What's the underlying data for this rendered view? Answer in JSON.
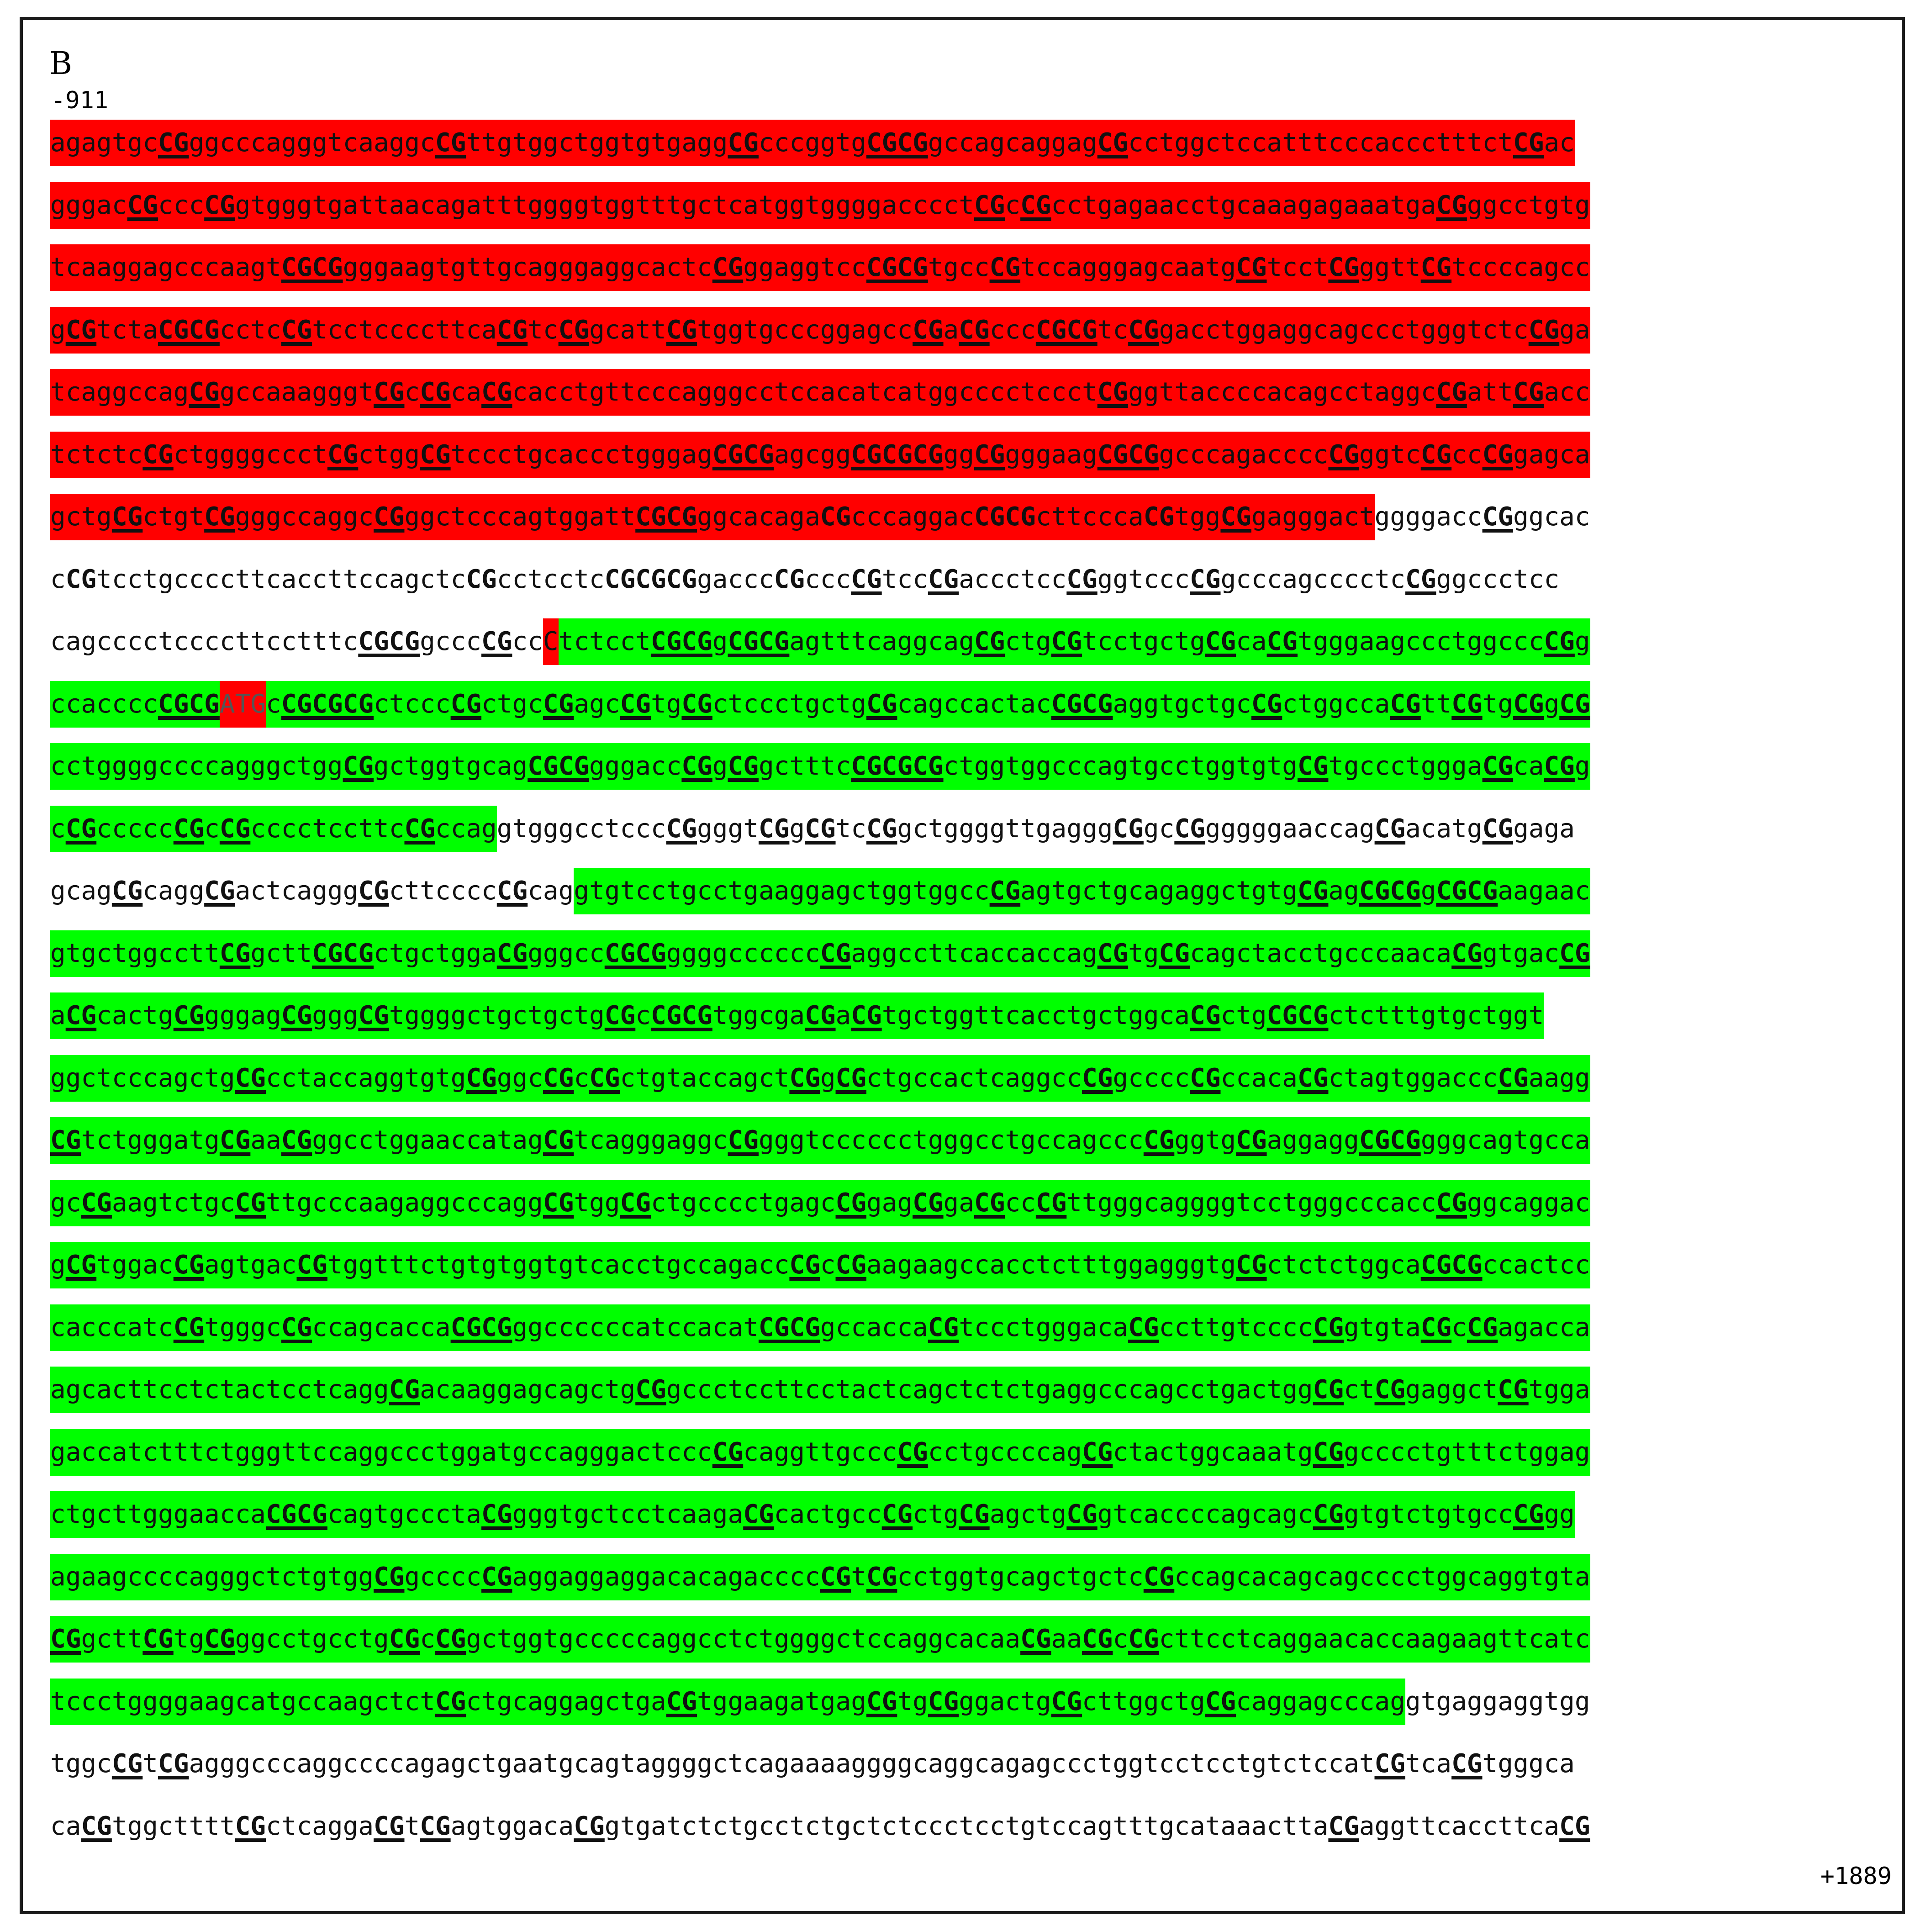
{
  "figure": {
    "panel_label": "B",
    "start_position": "-911",
    "end_position": "+1889"
  },
  "colors": {
    "red_region": "#ff0000",
    "green_region": "#00ff00",
    "text": "#111111"
  },
  "sequence": {
    "markup_legend": "Each line is an array of segments: [text, background ('r' red, 'g' green, '' none)]. Inside text, [X] = bold underlined CpG, {X} = bold (not underlined) CpG, <X> = start codon.",
    "lines": [
      [
        [
          "agagtgc[CG]ggcccagggtcaaggc[CG]ttgtggctggtgtgagg[CG]cccggtg[CGCG]gccagcaggag[CG]cctggctccatttcccaccctttct[CG]ac",
          "r"
        ]
      ],
      [
        [
          "gggac[CG]ccc[CG]gtgggtgattaacagatttggggtggtttgctcatggtggggacccct[CG]c[CG]cctgagaacctgcaaagagaaatga[CG]ggcctgtg",
          "r"
        ]
      ],
      [
        [
          "tcaaggagcccaagt[CGCG]gggaagtgttgcagggaggcactc[CG]ggaggtcc[CGCG]tgcc[CG]tccagggagcaatg[CG]tcct[CG]ggtt[CG]tccccagcc",
          "r"
        ]
      ],
      [
        [
          "g[CG]tcta[CGCG]cctc[CG]tcctccccttca[CG]tc[CG]gcatt[CG]tggtgcccggagcc[CG]a[CG]ccc[CGCG]tc[CG]gacctggaggcagccctgggtctc[CG]ga",
          "r"
        ]
      ],
      [
        [
          "tcaggccag[CG]gccaaagggt[CG]c[CG]ca[CG]cacctgttcccagggcctccacatcatggcccctccct[CG]ggttaccccacagcctaggc[CG]att[CG]acc",
          "r"
        ]
      ],
      [
        [
          "tctctc[CG]ctggggccct[CG]ctgg[CG]tccctgcaccctgggag[CGCG]agcgg[CGCGCG]gg[CG]gggaag[CGCG]gcccagacccc[CG]ggtc[CG]cc[CG]gagca",
          "r"
        ]
      ],
      [
        [
          "gctg[CG]ctgt[CG]gggccaggc[CG]ggctcccagtggatt[CGCG]ggcacaga{CG}cccaggac{CGCG}cttccca{CG}tgg[CG]gagggact",
          "r"
        ],
        [
          "ggggacc[CG]ggcac",
          ""
        ]
      ],
      [
        [
          "c{CG}tcctgccccttcaccttccagctc{CG}cctcctc{CGCGCG}gaccc{CG}ccc[CG]tcc[CG]accctcc[CG]ggtccc[CG]gcccagcccctc[CG]ggccctcc",
          ""
        ]
      ],
      [
        [
          "cagcccctccccttcctttc[CGCG]gccc[CG]cc",
          ""
        ],
        [
          "C",
          "r"
        ],
        [
          "tctcct[CGCG]g[CGCG]agtttcaggcag[CG]ctg[CG]tcctgctg[CG]ca[CG]tgggaagccctggccc[CG]g",
          "g"
        ]
      ],
      [
        [
          "ccacccc[CGCG]",
          "g"
        ],
        [
          "<ATG>",
          "r"
        ],
        [
          "c[CGCGCG]ctccc[CG]ctgc[CG]agc[CG]tg[CG]ctccctgctg[CG]cagccactac[CGCG]aggtgctgc[CG]ctggcca[CG]tt[CG]tg[CG]g[CG]",
          "g"
        ]
      ],
      [
        [
          "cctggggccccagggctgg[CG]gctggtgcag[CGCG]gggacc[CG]g[CG]gctttc[CGCGCG]ctggtggcccagtgcctggtgtg[CG]tgccctggga[CG]ca[CG]g",
          "g"
        ]
      ],
      [
        [
          "c[CG]ccccc[CG]c[CG]cccctccttc[CG]ccag",
          "g"
        ],
        [
          "gtgggcctccc[CG]gggt[CG]g[CG]tc[CG]gctggggttgaggg[CG]gc[CG]gggggaaccag[CG]acatg[CG]gaga",
          ""
        ]
      ],
      [
        [
          "gcag[CG]cagg[CG]actcaggg[CG]cttcccc[CG]cag",
          ""
        ],
        [
          "gtgtcctgcctgaaggagctggtggcc[CG]agtgctgcagaggctgtg[CG]ag[CGCG]g[CGCG]aagaac",
          "g"
        ]
      ],
      [
        [
          "gtgctggcctt[CG]gctt[CGCG]ctgctgga[CG]gggcc[CGCG]ggggcccccc[CG]aggccttcaccaccag[CG]tg[CG]cagctacctgcccaaca[CG]gtgac[CG]",
          "g"
        ]
      ],
      [
        [
          "a[CG]cactg[CG]gggag[CG]ggg[CG]tggggctgctgctg[CG]c[CGCG]tggcga[CG]a[CG]tgctggttcacctgctggca[CG]ctg[CGCG]ctctttgtgctggt",
          "g"
        ]
      ],
      [
        [
          "ggctcccagctg[CG]cctaccaggtgtg[CG]ggc[CG]c[CG]ctgtaccagct[CG]g[CG]ctgccactcaggcc[CG]gcccc[CG]ccaca[CG]ctagtggaccc[CG]aagg",
          "g"
        ]
      ],
      [
        [
          "[CG]tctgggatg[CG]aa[CG]ggcctggaaccatag[CG]tcagggaggc[CG]gggtcccccctgggcctgccagccc[CG]ggtg[CG]aggagg[CGCG]gggcagtgcca",
          "g"
        ]
      ],
      [
        [
          "gc[CG]aagtctgc[CG]ttgcccaagaggcccagg[CG]tgg[CG]ctgcccctgagc[CG]gag[CG]ga[CG]cc[CG]ttgggcaggggtcctgggcccacc[CG]ggcaggac",
          "g"
        ]
      ],
      [
        [
          "g[CG]tggac[CG]agtgac[CG]tggtttctgtgtggtgtcacctgccagacc[CG]c[CG]aagaagccacctctttggagggtg[CG]ctctctggca[CGCG]ccactcc",
          "g"
        ]
      ],
      [
        [
          "cacccatc[CG]tgggc[CG]ccagcacca[CGCG]ggccccccatccacat[CGCG]gccacca[CG]tccctgggaca[CG]ccttgtcccc[CG]gtgta[CG]c[CG]agacca",
          "g"
        ]
      ],
      [
        [
          "agcacttcctctactcctcagg[CG]acaaggagcagctg[CG]gccctccttcctactcagctctctgaggcccagcctgactgg[CG]ct[CG]gaggct[CG]tgga",
          "g"
        ]
      ],
      [
        [
          "gaccatctttctgggttccaggccctggatgccagggactccc[CG]caggttgccc[CG]cctgccccag[CG]ctactggcaaatg[CG]gcccctgtttctggag",
          "g"
        ]
      ],
      [
        [
          "ctgcttgggaacca[CGCG]cagtgcccta[CG]gggtgctcctcaaga[CG]cactgcc[CG]ctg[CG]agctg[CG]gtcaccccagcagc[CG]gtgtctgtgcc[CG]gg",
          "g"
        ]
      ],
      [
        [
          "agaagccccagggctctgtgg[CG]gcccc[CG]aggaggaggacacagacccc[CG]t[CG]cctggtgcagctgctc[CG]ccagcacagcagcccctggcaggtgta",
          "g"
        ]
      ],
      [
        [
          "[CG]gctt[CG]tg[CG]ggcctgcctg[CG]c[CG]gctggtgcccccaggcctctggggctccaggcacaa[CG]aa[CG]c[CG]cttcctcaggaacaccaagaagttcatc",
          "g"
        ]
      ],
      [
        [
          "tccctggggaagcatgccaagctct[CG]ctgcaggagctga[CG]tggaagatgag[CG]tg[CG]ggactg[CG]cttggctg[CG]caggagcccag",
          "g"
        ],
        [
          "gtgaggaggtgg",
          ""
        ]
      ],
      [
        [
          "tggc[CG]t[CG]agggcccaggccccagagctgaatgcagtaggggctcagaaaaggggcaggcagagccctggtcctcctgtctccat[CG]tca[CG]tgggca",
          ""
        ]
      ],
      [
        [
          "ca[CG]tggctttt[CG]ctcagga[CG]t[CG]agtggaca[CG]gtgatctctgcctctgctctccctcctgtccagtttgcataaactta[CG]aggttcaccttca[CG]",
          ""
        ]
      ]
    ]
  }
}
